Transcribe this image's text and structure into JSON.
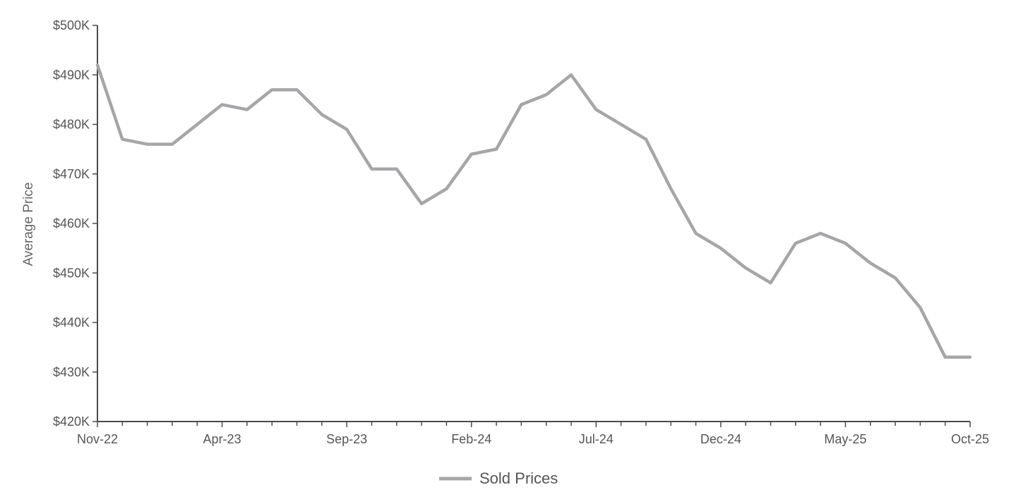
{
  "chart_data": {
    "type": "line",
    "title": "",
    "xlabel": "",
    "ylabel": "Average Price",
    "x": [
      "Nov-22",
      "Dec-22",
      "Jan-23",
      "Feb-23",
      "Mar-23",
      "Apr-23",
      "May-23",
      "Jun-23",
      "Jul-23",
      "Aug-23",
      "Sep-23",
      "Oct-23",
      "Nov-23",
      "Dec-23",
      "Jan-24",
      "Feb-24",
      "Mar-24",
      "Apr-24",
      "May-24",
      "Jun-24",
      "Jul-24",
      "Aug-24",
      "Sep-24",
      "Oct-24",
      "Nov-24",
      "Dec-24",
      "Jan-25",
      "Feb-25",
      "Mar-25",
      "Apr-25",
      "May-25",
      "Jun-25",
      "Jul-25",
      "Aug-25",
      "Sep-25",
      "Oct-25"
    ],
    "x_tick_labels": [
      "Nov-22",
      "Apr-23",
      "Sep-23",
      "Feb-24",
      "Jul-24",
      "Dec-24",
      "May-25",
      "Oct-25"
    ],
    "series": [
      {
        "name": "Sold Prices",
        "color": "#a6a6a9",
        "values": [
          492,
          477,
          476,
          476,
          480,
          484,
          483,
          487,
          487,
          482,
          479,
          471,
          471,
          464,
          467,
          474,
          475,
          484,
          486,
          490,
          483,
          480,
          477,
          467,
          458,
          455,
          451,
          448,
          456,
          458,
          456,
          452,
          449,
          443,
          433,
          433
        ]
      }
    ],
    "y_tick_labels": [
      "$420K",
      "$430K",
      "$440K",
      "$450K",
      "$460K",
      "$470K",
      "$480K",
      "$490K",
      "$500K"
    ],
    "y_unit": "thousands USD",
    "ylim": [
      420,
      500
    ],
    "grid": false,
    "legend_position": "bottom-center"
  }
}
